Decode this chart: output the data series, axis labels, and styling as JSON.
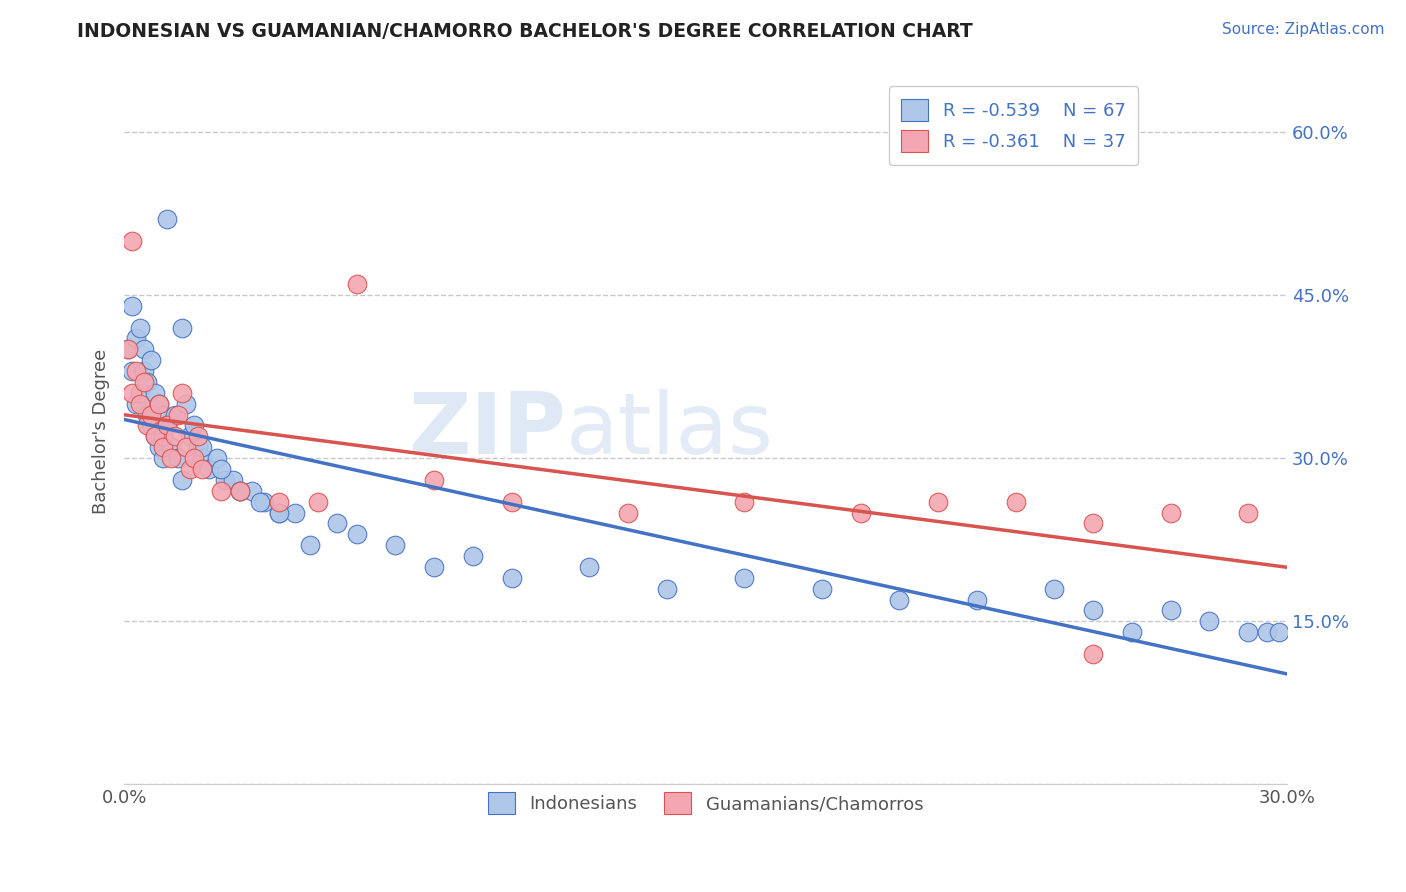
{
  "title": "INDONESIAN VS GUAMANIAN/CHAMORRO BACHELOR'S DEGREE CORRELATION CHART",
  "source_text": "Source: ZipAtlas.com",
  "ylabel": "Bachelor's Degree",
  "xlim": [
    0.0,
    0.3
  ],
  "ylim": [
    0.0,
    0.65
  ],
  "xticks": [
    0.0,
    0.05,
    0.1,
    0.15,
    0.2,
    0.25,
    0.3
  ],
  "xticklabels": [
    "0.0%",
    "",
    "",
    "",
    "",
    "",
    "30.0%"
  ],
  "yticks": [
    0.0,
    0.15,
    0.3,
    0.45,
    0.6
  ],
  "yticklabels": [
    "",
    "15.0%",
    "30.0%",
    "45.0%",
    "60.0%"
  ],
  "grid_color": "#c8c8c8",
  "background_color": "#ffffff",
  "indonesian_color": "#aec6e8",
  "guamanian_color": "#f4a7b2",
  "indonesian_line_color": "#4472c4",
  "guamanian_line_color": "#d9534f",
  "legend_R1": "-0.539",
  "legend_N1": "67",
  "legend_R2": "-0.361",
  "legend_N2": "37",
  "watermark_zip": "ZIP",
  "watermark_atlas": "atlas",
  "indonesian_x": [
    0.001,
    0.002,
    0.002,
    0.003,
    0.003,
    0.004,
    0.004,
    0.005,
    0.005,
    0.006,
    0.006,
    0.007,
    0.007,
    0.008,
    0.008,
    0.009,
    0.009,
    0.01,
    0.01,
    0.011,
    0.011,
    0.012,
    0.013,
    0.014,
    0.015,
    0.016,
    0.017,
    0.018,
    0.019,
    0.02,
    0.022,
    0.024,
    0.026,
    0.028,
    0.03,
    0.033,
    0.036,
    0.04,
    0.044,
    0.048,
    0.055,
    0.06,
    0.07,
    0.08,
    0.09,
    0.1,
    0.12,
    0.14,
    0.16,
    0.18,
    0.2,
    0.22,
    0.24,
    0.25,
    0.26,
    0.27,
    0.28,
    0.29,
    0.295,
    0.298,
    0.01,
    0.015,
    0.02,
    0.025,
    0.03,
    0.035,
    0.04
  ],
  "indonesian_y": [
    0.4,
    0.38,
    0.44,
    0.41,
    0.35,
    0.42,
    0.36,
    0.4,
    0.38,
    0.37,
    0.34,
    0.39,
    0.33,
    0.36,
    0.32,
    0.35,
    0.31,
    0.34,
    0.3,
    0.33,
    0.52,
    0.31,
    0.34,
    0.3,
    0.42,
    0.35,
    0.32,
    0.33,
    0.31,
    0.3,
    0.29,
    0.3,
    0.28,
    0.28,
    0.27,
    0.27,
    0.26,
    0.25,
    0.25,
    0.22,
    0.24,
    0.23,
    0.22,
    0.2,
    0.21,
    0.19,
    0.2,
    0.18,
    0.19,
    0.18,
    0.17,
    0.17,
    0.18,
    0.16,
    0.14,
    0.16,
    0.15,
    0.14,
    0.14,
    0.14,
    0.32,
    0.28,
    0.31,
    0.29,
    0.27,
    0.26,
    0.25
  ],
  "guamanian_x": [
    0.001,
    0.002,
    0.003,
    0.004,
    0.005,
    0.006,
    0.007,
    0.008,
    0.009,
    0.01,
    0.011,
    0.012,
    0.013,
    0.014,
    0.015,
    0.016,
    0.017,
    0.018,
    0.019,
    0.02,
    0.025,
    0.03,
    0.04,
    0.05,
    0.06,
    0.08,
    0.1,
    0.13,
    0.16,
    0.19,
    0.21,
    0.23,
    0.25,
    0.27,
    0.002,
    0.25,
    0.29
  ],
  "guamanian_y": [
    0.4,
    0.36,
    0.38,
    0.35,
    0.37,
    0.33,
    0.34,
    0.32,
    0.35,
    0.31,
    0.33,
    0.3,
    0.32,
    0.34,
    0.36,
    0.31,
    0.29,
    0.3,
    0.32,
    0.29,
    0.27,
    0.27,
    0.26,
    0.26,
    0.46,
    0.28,
    0.26,
    0.25,
    0.26,
    0.25,
    0.26,
    0.26,
    0.24,
    0.25,
    0.5,
    0.12,
    0.25
  ]
}
